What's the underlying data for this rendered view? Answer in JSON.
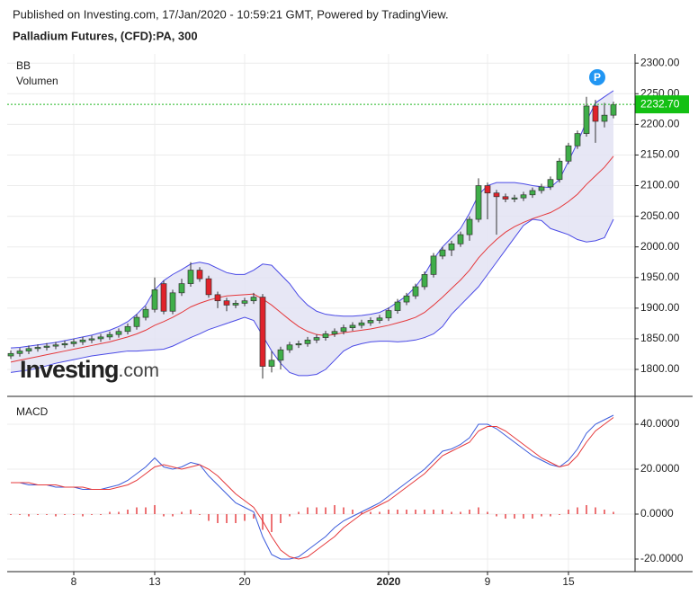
{
  "header": {
    "published": "Published on Investing.com, 17/Jan/2020 - 10:59:21 GMT, Powered by TradingView.",
    "instrument": "Palladium Futures, (CFD):PA, 300"
  },
  "logo": {
    "brand": "Investing",
    "suffix": ".com"
  },
  "chart_data": [
    {
      "type": "candlestick",
      "legend": [
        "BB",
        "Volumen"
      ],
      "marker_label": "P",
      "ylim": [
        1756,
        2315
      ],
      "yticks": [
        {
          "value": 1800,
          "label": "1800.00"
        },
        {
          "value": 1850,
          "label": "1850.00"
        },
        {
          "value": 1900,
          "label": "1900.00"
        },
        {
          "value": 1950,
          "label": "1950.00"
        },
        {
          "value": 2000,
          "label": "2000.00"
        },
        {
          "value": 2050,
          "label": "2050.00"
        },
        {
          "value": 2100,
          "label": "2100.00"
        },
        {
          "value": 2150,
          "label": "2150.00"
        },
        {
          "value": 2200,
          "label": "2200.00"
        },
        {
          "value": 2250,
          "label": "2250.00"
        },
        {
          "value": 2300,
          "label": "2300.00"
        }
      ],
      "last_price": {
        "value": 2232.7,
        "label": "2232.70"
      },
      "grid": true,
      "up_color": "#3fae49",
      "down_color": "#e0232b",
      "open": [
        1822,
        1826,
        1830,
        1834,
        1836,
        1838,
        1840,
        1842,
        1845,
        1848,
        1850,
        1853,
        1857,
        1862,
        1870,
        1885,
        1898,
        1940,
        1895,
        1925,
        1940,
        1962,
        1948,
        1922,
        1912,
        1905,
        1908,
        1912,
        1918,
        1805,
        1815,
        1832,
        1840,
        1842,
        1848,
        1852,
        1858,
        1862,
        1868,
        1872,
        1876,
        1880,
        1884,
        1896,
        1910,
        1920,
        1935,
        1955,
        1985,
        1995,
        2005,
        2020,
        2045,
        2100,
        2088,
        2082,
        2078,
        2080,
        2085,
        2092,
        2098,
        2110,
        2140,
        2165,
        2185,
        2230,
        2205,
        2215
      ],
      "high": [
        1831,
        1835,
        1839,
        1841,
        1843,
        1845,
        1847,
        1850,
        1853,
        1855,
        1858,
        1862,
        1867,
        1875,
        1890,
        1903,
        1950,
        1945,
        1930,
        1948,
        1975,
        1967,
        1953,
        1927,
        1917,
        1913,
        1917,
        1925,
        1923,
        1830,
        1837,
        1845,
        1847,
        1853,
        1857,
        1863,
        1867,
        1873,
        1877,
        1881,
        1885,
        1889,
        1901,
        1915,
        1925,
        1940,
        1960,
        1990,
        2000,
        2010,
        2025,
        2050,
        2112,
        2105,
        2093,
        2087,
        2085,
        2090,
        2097,
        2103,
        2115,
        2145,
        2170,
        2190,
        2245,
        2240,
        2235,
        2237
      ],
      "low": [
        1817,
        1821,
        1825,
        1829,
        1831,
        1833,
        1835,
        1837,
        1840,
        1843,
        1845,
        1848,
        1852,
        1857,
        1865,
        1880,
        1893,
        1890,
        1890,
        1920,
        1935,
        1943,
        1917,
        1900,
        1895,
        1900,
        1903,
        1907,
        1785,
        1795,
        1800,
        1827,
        1835,
        1837,
        1843,
        1847,
        1853,
        1857,
        1863,
        1867,
        1871,
        1875,
        1879,
        1891,
        1905,
        1915,
        1930,
        1950,
        1980,
        1985,
        2000,
        2010,
        2040,
        2045,
        2020,
        2073,
        2073,
        2075,
        2080,
        2087,
        2093,
        2105,
        2135,
        2160,
        2180,
        2170,
        2195,
        2210
      ],
      "close": [
        1826,
        1830,
        1834,
        1836,
        1838,
        1840,
        1842,
        1845,
        1848,
        1850,
        1853,
        1857,
        1862,
        1870,
        1885,
        1898,
        1930,
        1895,
        1925,
        1940,
        1962,
        1948,
        1922,
        1912,
        1905,
        1908,
        1912,
        1918,
        1805,
        1815,
        1832,
        1840,
        1842,
        1848,
        1852,
        1858,
        1862,
        1868,
        1872,
        1876,
        1880,
        1884,
        1896,
        1910,
        1920,
        1935,
        1955,
        1985,
        1995,
        2005,
        2020,
        2045,
        2100,
        2088,
        2082,
        2078,
        2080,
        2085,
        2092,
        2098,
        2110,
        2140,
        2165,
        2185,
        2230,
        2205,
        2215,
        2232
      ],
      "bands": [
        {
          "name": "upper",
          "color": "#4a4ae6",
          "values": [
            1835,
            1836,
            1838,
            1840,
            1842,
            1844,
            1847,
            1850,
            1853,
            1856,
            1860,
            1864,
            1870,
            1878,
            1890,
            1905,
            1930,
            1945,
            1955,
            1963,
            1972,
            1975,
            1972,
            1965,
            1958,
            1955,
            1955,
            1962,
            1972,
            1970,
            1955,
            1940,
            1920,
            1905,
            1895,
            1890,
            1888,
            1887,
            1887,
            1888,
            1890,
            1893,
            1900,
            1910,
            1920,
            1935,
            1955,
            1980,
            2000,
            2015,
            2030,
            2055,
            2085,
            2100,
            2105,
            2105,
            2105,
            2103,
            2100,
            2098,
            2097,
            2110,
            2140,
            2170,
            2205,
            2235,
            2245,
            2255
          ]
        },
        {
          "name": "middle",
          "color": "#e5383b",
          "values": [
            1812,
            1815,
            1818,
            1821,
            1824,
            1827,
            1830,
            1833,
            1836,
            1839,
            1842,
            1845,
            1849,
            1853,
            1858,
            1864,
            1872,
            1878,
            1885,
            1893,
            1902,
            1908,
            1913,
            1917,
            1920,
            1921,
            1922,
            1923,
            1915,
            1905,
            1893,
            1881,
            1870,
            1862,
            1857,
            1855,
            1857,
            1860,
            1862,
            1864,
            1866,
            1869,
            1872,
            1876,
            1880,
            1885,
            1893,
            1905,
            1918,
            1932,
            1946,
            1962,
            1982,
            1998,
            2012,
            2024,
            2033,
            2040,
            2046,
            2051,
            2056,
            2064,
            2074,
            2086,
            2102,
            2116,
            2130,
            2148
          ]
        },
        {
          "name": "lower",
          "color": "#4a4ae6",
          "values": [
            1795,
            1797,
            1799,
            1802,
            1806,
            1810,
            1813,
            1816,
            1819,
            1822,
            1824,
            1826,
            1828,
            1830,
            1830,
            1831,
            1832,
            1833,
            1838,
            1845,
            1852,
            1858,
            1865,
            1870,
            1875,
            1880,
            1885,
            1880,
            1855,
            1830,
            1810,
            1795,
            1790,
            1790,
            1792,
            1800,
            1815,
            1830,
            1838,
            1842,
            1845,
            1846,
            1846,
            1845,
            1846,
            1848,
            1852,
            1858,
            1870,
            1890,
            1905,
            1920,
            1935,
            1955,
            1975,
            1995,
            2015,
            2035,
            2045,
            2043,
            2030,
            2025,
            2020,
            2012,
            2008,
            2010,
            2015,
            2045
          ]
        }
      ],
      "band_fill": "#e3e3f3"
    },
    {
      "type": "line",
      "title": "MACD",
      "categories": [
        null,
        null,
        null,
        null,
        null,
        null,
        null,
        "8",
        null,
        null,
        null,
        null,
        null,
        null,
        null,
        null,
        "13",
        null,
        null,
        null,
        null,
        null,
        null,
        null,
        null,
        null,
        "20",
        null,
        null,
        null,
        null,
        null,
        null,
        null,
        null,
        null,
        null,
        null,
        null,
        null,
        null,
        null,
        "2020",
        null,
        null,
        null,
        null,
        null,
        null,
        null,
        null,
        null,
        null,
        "9",
        null,
        null,
        null,
        null,
        null,
        null,
        null,
        null,
        "15",
        null,
        null,
        null,
        null,
        null
      ],
      "ylim": [
        -25.6,
        52.4
      ],
      "yticks": [
        {
          "value": -20,
          "label": "-20.0000"
        },
        {
          "value": 0,
          "label": "0.0000"
        },
        {
          "value": 20,
          "label": "20.0000"
        },
        {
          "value": 40,
          "label": "40.0000"
        }
      ],
      "grid": true,
      "series": [
        {
          "name": "macd",
          "color": "#3b5bdb",
          "values": [
            14,
            14,
            13,
            13,
            13,
            12,
            12,
            12,
            11,
            11,
            11,
            12,
            13,
            15,
            18,
            21,
            25,
            21,
            20,
            21,
            23,
            22,
            17,
            13,
            9,
            5,
            3,
            1,
            -10,
            -18,
            -20,
            -20,
            -19,
            -16,
            -13,
            -10,
            -6,
            -3,
            -1,
            1,
            3,
            5,
            8,
            11,
            14,
            17,
            20,
            24,
            28,
            29,
            31,
            34,
            40,
            40,
            38,
            35,
            32,
            29,
            26,
            24,
            22,
            21,
            24,
            29,
            36,
            40,
            42,
            44
          ]
        },
        {
          "name": "signal",
          "color": "#e5383b",
          "values": [
            14,
            14,
            14,
            13,
            13,
            13,
            12,
            12,
            12,
            11,
            11,
            11,
            12,
            13,
            15,
            18,
            21,
            22,
            21,
            20,
            21,
            22,
            20,
            17,
            13,
            9,
            6,
            3,
            -3,
            -10,
            -16,
            -19,
            -20,
            -19,
            -16,
            -13,
            -10,
            -6,
            -3,
            0,
            2,
            4,
            6,
            9,
            12,
            15,
            18,
            22,
            26,
            28,
            30,
            32,
            37,
            39,
            39,
            37,
            34,
            31,
            28,
            25,
            23,
            21,
            22,
            26,
            32,
            37,
            40,
            43
          ]
        }
      ],
      "histogram": {
        "color": "#e5383b",
        "values": [
          0,
          0,
          -1,
          0,
          0,
          -1,
          0,
          0,
          -1,
          0,
          0,
          1,
          1,
          2,
          3,
          3,
          4,
          -1,
          -1,
          1,
          2,
          0,
          -3,
          -4,
          -4,
          -4,
          -3,
          -2,
          -7,
          -8,
          -4,
          -1,
          1,
          3,
          3,
          3,
          4,
          3,
          2,
          1,
          1,
          1,
          2,
          2,
          2,
          2,
          2,
          2,
          2,
          1,
          1,
          2,
          3,
          1,
          -1,
          -2,
          -2,
          -2,
          -2,
          -1,
          -1,
          0,
          2,
          3,
          4,
          3,
          2,
          1
        ]
      }
    }
  ]
}
